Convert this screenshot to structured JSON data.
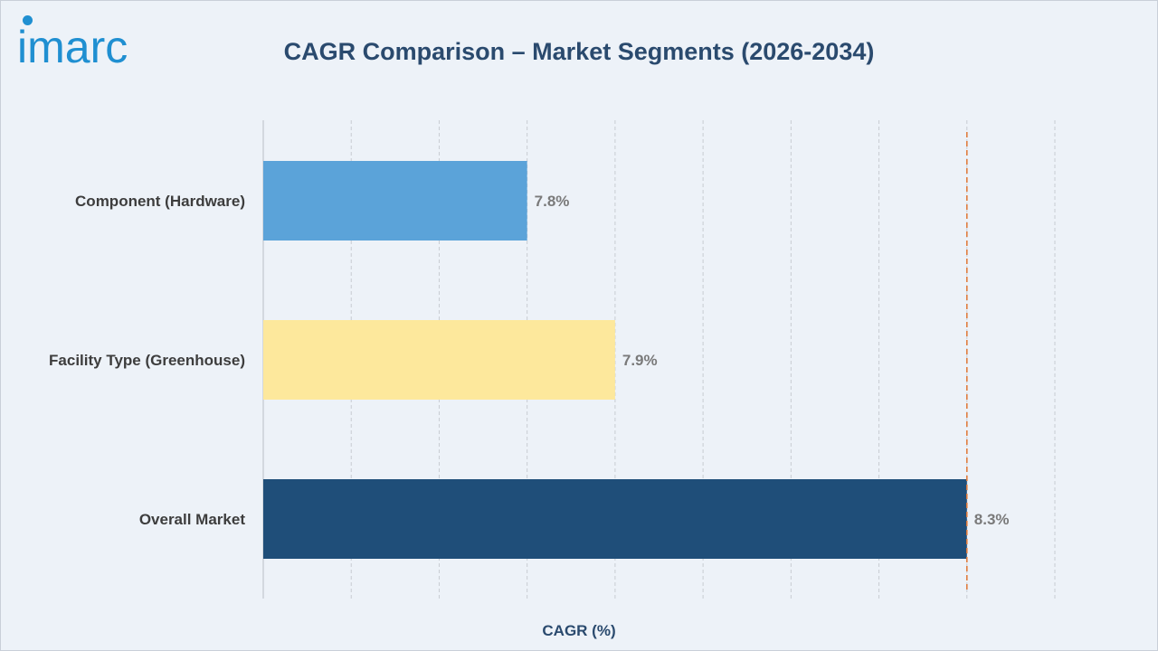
{
  "brand": {
    "logo_text": "imarc"
  },
  "colors": {
    "background": "#edf2f8",
    "title": "#2a4a6e",
    "reference_line": "#e07b3c",
    "gridline": "#c8ccd2"
  },
  "chart_data": {
    "type": "bar",
    "orientation": "horizontal",
    "title": "CAGR Comparison – Market Segments (2026-2034)",
    "xlabel": "CAGR (%)",
    "ylabel": "",
    "categories": [
      "Component (Hardware)",
      "Facility Type (Greenhouse)",
      "Overall Market"
    ],
    "values": [
      7.8,
      7.9,
      8.3
    ],
    "value_labels": [
      "7.8%",
      "7.9%",
      "8.3%"
    ],
    "bar_colors": [
      "#5ba3d9",
      "#fde89c",
      "#1f4e79"
    ],
    "xlim": [
      7.5,
      8.4
    ],
    "grid_step": 0.1,
    "grid": true,
    "reference_line": {
      "value": 8.3,
      "style": "dashed",
      "color": "#e07b3c"
    },
    "legend": "none"
  }
}
